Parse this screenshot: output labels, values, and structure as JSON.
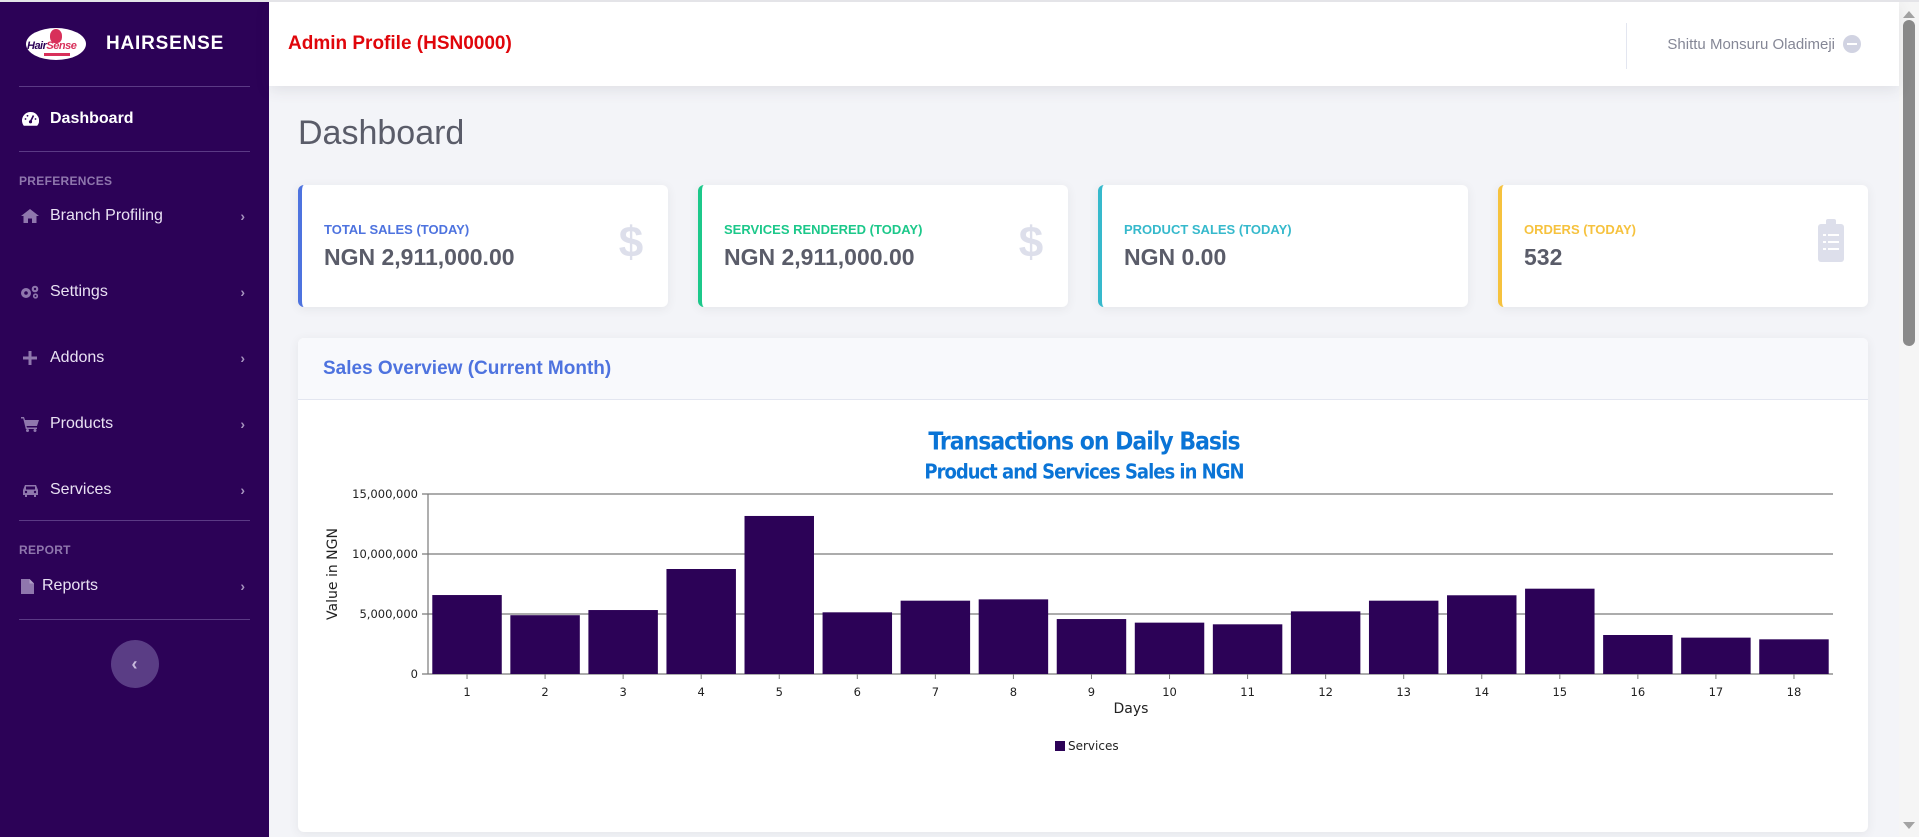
{
  "sidebar": {
    "brand": "HAIRSENSE",
    "logo": {
      "text_a": "Hair",
      "text_b": "Sense"
    },
    "items": [
      {
        "label": "Dashboard",
        "icon": "tachometer-icon",
        "active": true
      },
      {
        "section": "PREFERENCES"
      },
      {
        "label": "Branch Profiling",
        "icon": "home-icon"
      },
      {
        "label": "Settings",
        "icon": "cogs-icon"
      },
      {
        "label": "Addons",
        "icon": "plus-icon"
      },
      {
        "label": "Products",
        "icon": "cart-icon"
      },
      {
        "label": "Services",
        "icon": "car-icon"
      },
      {
        "section": "REPORT"
      },
      {
        "label": "Reports",
        "icon": "file-icon"
      }
    ],
    "chevron": "›",
    "collapse_glyph": "‹"
  },
  "topbar": {
    "title": "Admin Profile (HSN0000)",
    "user_name": "Shittu Monsuru Oladimeji"
  },
  "page": {
    "title": "Dashboard"
  },
  "cards": [
    {
      "label": "TOTAL SALES (TODAY)",
      "value": "NGN 2,911,000.00",
      "icon": "dollar-icon",
      "glyph": "$",
      "color": "#4e73df"
    },
    {
      "label": "SERVICES RENDERED (TODAY)",
      "value": "NGN 2,911,000.00",
      "icon": "dollar-icon",
      "glyph": "$",
      "color": "#1cc88a"
    },
    {
      "label": "PRODUCT SALES (TODAY)",
      "value": "NGN 0.00",
      "icon": "",
      "glyph": "",
      "color": "#36b9cc"
    },
    {
      "label": "ORDERS (TODAY)",
      "value": "532",
      "icon": "clipboard-list-icon",
      "glyph": "",
      "color": "#f6c23e"
    }
  ],
  "sales_overview": {
    "header": "Sales Overview (Current Month)"
  },
  "colors": {
    "sidebar_bg": "#2c0257",
    "bar": "#2c0257",
    "chart_title": "#0a74d6",
    "admin_title": "#e0060b"
  },
  "chart_data": {
    "type": "bar",
    "title": "Transactions on Daily Basis",
    "subtitle": "Product and Services Sales in NGN",
    "xlabel": "Days",
    "ylabel": "Value in NGN",
    "ylim": [
      0,
      15000000
    ],
    "yticks": [
      0,
      5000000,
      10000000,
      15000000
    ],
    "ytick_labels": [
      "0",
      "5,000,000",
      "10,000,000",
      "15,000,000"
    ],
    "grid": true,
    "legend_position": "bottom-center",
    "categories": [
      "1",
      "2",
      "3",
      "4",
      "5",
      "6",
      "7",
      "8",
      "9",
      "10",
      "11",
      "12",
      "13",
      "14",
      "15",
      "16",
      "17",
      "18"
    ],
    "series": [
      {
        "name": "Services",
        "values": [
          6580000,
          4900000,
          5330000,
          8750000,
          13170000,
          5140000,
          6110000,
          6220000,
          4580000,
          4280000,
          4140000,
          5220000,
          6110000,
          6560000,
          7110000,
          3250000,
          3030000,
          2890000
        ]
      }
    ]
  }
}
